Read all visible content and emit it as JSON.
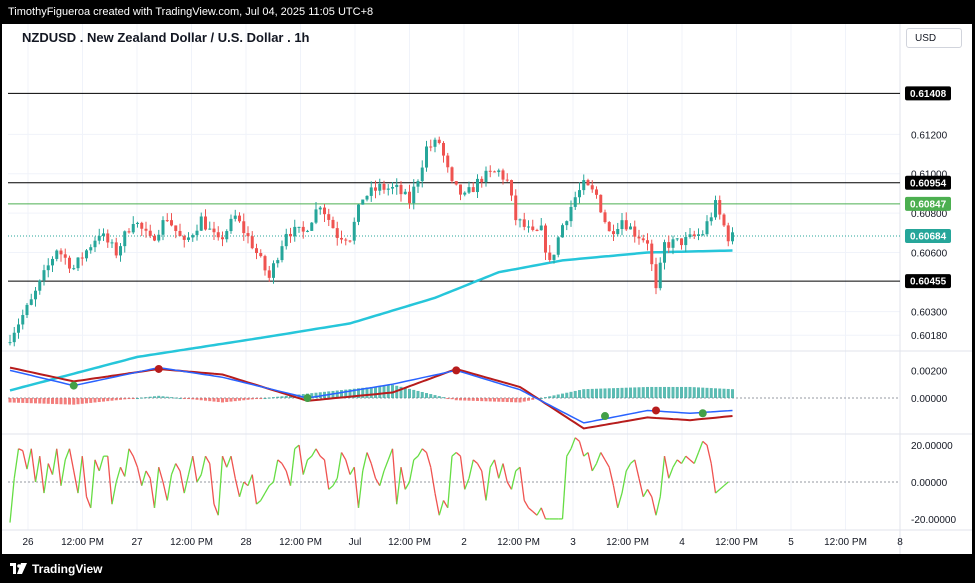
{
  "header": {
    "credit": "TimothyFigueroa created with TradingView.com, Jul 04, 2025 11:05 UTC+8"
  },
  "chart_header": {
    "title": "NZDUSD . New Zealand Dollar / U.S. Dollar . 1h",
    "currency": "USD"
  },
  "footer": {
    "brand": "TradingView"
  },
  "colors": {
    "up": "#26a69a",
    "down": "#ef5350",
    "ema": "#26c6da",
    "macd_line": "#2962ff",
    "signal_line": "#b71c1c",
    "macd_fast": "#43a047",
    "rsi_up": "#66dd44",
    "rsi_down": "#ef5350",
    "hline": "#000000",
    "green_line": "#4caf50"
  },
  "chart_data": [
    {
      "type": "candlestick",
      "pane": "price",
      "title": "NZDUSD . New Zealand Dollar / U.S. Dollar . 1h",
      "x_ticks": [
        "26",
        "12:00 PM",
        "27",
        "12:00 PM",
        "28",
        "12:00 PM",
        "Jul",
        "12:00 PM",
        "2",
        "12:00 PM",
        "3",
        "12:00 PM",
        "4",
        "12:00 PM",
        "5",
        "12:00 PM",
        "8"
      ],
      "y_ticks": [
        "0.61200",
        "0.61000",
        "0.60800",
        "0.60600",
        "0.60300",
        "0.60180"
      ],
      "y_tick_values": [
        0.612,
        0.61,
        0.608,
        0.606,
        0.603,
        0.6018
      ],
      "ylim": [
        0.601,
        0.6176
      ],
      "price_tags": [
        {
          "label": "0.61408",
          "value": 0.61408,
          "style": "black-line"
        },
        {
          "label": "0.60954",
          "value": 0.60954,
          "style": "black-line"
        },
        {
          "label": "0.60847",
          "value": 0.60847,
          "style": "green-line"
        },
        {
          "label": "0.60684",
          "value": 0.60684,
          "style": "current-price"
        },
        {
          "label": "0.60455",
          "value": 0.60455,
          "style": "black-line"
        }
      ],
      "price_path": [
        [
          0,
          0.6014
        ],
        [
          6,
          0.6035
        ],
        [
          12,
          0.6062
        ],
        [
          16,
          0.6052
        ],
        [
          22,
          0.607
        ],
        [
          26,
          0.606
        ],
        [
          30,
          0.6077
        ],
        [
          34,
          0.6066
        ],
        [
          38,
          0.6078
        ],
        [
          42,
          0.6064
        ],
        [
          46,
          0.6077
        ],
        [
          50,
          0.6065
        ],
        [
          54,
          0.6078
        ],
        [
          58,
          0.6064
        ],
        [
          62,
          0.6047
        ],
        [
          66,
          0.6071
        ],
        [
          70,
          0.607
        ],
        [
          74,
          0.6085
        ],
        [
          78,
          0.6069
        ],
        [
          81,
          0.6068
        ],
        [
          84,
          0.6088
        ],
        [
          88,
          0.6093
        ],
        [
          92,
          0.6092
        ],
        [
          95,
          0.6086
        ],
        [
          97,
          0.6098
        ],
        [
          99,
          0.6113
        ],
        [
          102,
          0.6116
        ],
        [
          105,
          0.6094
        ],
        [
          108,
          0.6088
        ],
        [
          112,
          0.6098
        ],
        [
          116,
          0.6101
        ],
        [
          118,
          0.6096
        ],
        [
          120,
          0.6077
        ],
        [
          124,
          0.6069
        ],
        [
          126,
          0.6071
        ],
        [
          128,
          0.6054
        ],
        [
          131,
          0.6074
        ],
        [
          134,
          0.6088
        ],
        [
          136,
          0.6094
        ],
        [
          139,
          0.6089
        ],
        [
          142,
          0.607
        ],
        [
          145,
          0.6077
        ],
        [
          148,
          0.607
        ],
        [
          151,
          0.6066
        ],
        [
          153,
          0.604
        ],
        [
          155,
          0.6064
        ],
        [
          160,
          0.6066
        ],
        [
          164,
          0.607
        ],
        [
          167,
          0.6084
        ],
        [
          170,
          0.6068
        ]
      ],
      "ema_path": [
        [
          0,
          0.599
        ],
        [
          30,
          0.6007
        ],
        [
          60,
          0.6017
        ],
        [
          80,
          0.6024
        ],
        [
          100,
          0.6037
        ],
        [
          115,
          0.605
        ],
        [
          130,
          0.6056
        ],
        [
          150,
          0.606
        ],
        [
          170,
          0.6061
        ]
      ],
      "bar_count": 171
    },
    {
      "type": "line",
      "pane": "macd",
      "y_ticks": [
        "0.00200",
        "0.00000"
      ],
      "y_tick_values": [
        0.002,
        0.0
      ],
      "ylim": [
        -0.0026,
        0.0034
      ],
      "macd_path": [
        [
          0,
          0.002
        ],
        [
          15,
          0.0009
        ],
        [
          35,
          0.0022
        ],
        [
          50,
          0.0015
        ],
        [
          70,
          0.0
        ],
        [
          90,
          0.001
        ],
        [
          105,
          0.002
        ],
        [
          120,
          0.0006
        ],
        [
          135,
          -0.0018
        ],
        [
          150,
          -0.0009
        ],
        [
          160,
          -0.0011
        ],
        [
          170,
          -0.0009
        ]
      ],
      "signal_path": [
        [
          0,
          0.0022
        ],
        [
          15,
          0.0012
        ],
        [
          35,
          0.0021
        ],
        [
          50,
          0.0017
        ],
        [
          70,
          -0.0002
        ],
        [
          90,
          0.0004
        ],
        [
          105,
          0.0021
        ],
        [
          120,
          0.0008
        ],
        [
          135,
          -0.0022
        ],
        [
          150,
          -0.0014
        ],
        [
          160,
          -0.0016
        ],
        [
          170,
          -0.0013
        ]
      ],
      "cross_markers": [
        {
          "bar": 15,
          "value": 0.0009,
          "dir": "up"
        },
        {
          "bar": 35,
          "value": 0.0021,
          "dir": "down"
        },
        {
          "bar": 70,
          "value": 0.0,
          "dir": "up"
        },
        {
          "bar": 105,
          "value": 0.002,
          "dir": "down"
        },
        {
          "bar": 140,
          "value": -0.0013,
          "dir": "up"
        },
        {
          "bar": 152,
          "value": -0.0009,
          "dir": "down"
        },
        {
          "bar": 163,
          "value": -0.0011,
          "dir": "up"
        }
      ]
    },
    {
      "type": "line",
      "pane": "oscillator",
      "y_ticks": [
        "20.00000",
        "0.00000",
        "-20.00000"
      ],
      "y_tick_values": [
        20,
        0,
        -20
      ],
      "ylim": [
        -26,
        26
      ],
      "values": [
        -22,
        2,
        18,
        17,
        7,
        18,
        0,
        14,
        -6,
        10,
        4,
        18,
        -2,
        12,
        18,
        6,
        -6,
        14,
        -8,
        -14,
        12,
        6,
        14,
        14,
        -12,
        0,
        8,
        3,
        18,
        14,
        8,
        -2,
        6,
        2,
        -14,
        8,
        0,
        -10,
        4,
        10,
        6,
        -6,
        4,
        14,
        0,
        4,
        14,
        10,
        -12,
        -18,
        14,
        8,
        14,
        2,
        -8,
        0,
        -2,
        4,
        -12,
        -10,
        -6,
        -2,
        0,
        12,
        10,
        6,
        -2,
        18,
        20,
        4,
        12,
        14,
        18,
        14,
        12,
        -4,
        -2,
        2,
        16,
        12,
        4,
        8,
        -14,
        6,
        16,
        10,
        2,
        -2,
        6,
        12,
        18,
        -12,
        8,
        -4,
        0,
        12,
        14,
        18,
        16,
        8,
        -6,
        -18,
        -10,
        -14,
        14,
        16,
        14,
        -4,
        2,
        12,
        10,
        6,
        -10,
        8,
        12,
        2,
        10,
        0,
        -4,
        6,
        8,
        -10,
        -14,
        -16,
        -18,
        -14,
        -20,
        -20,
        -20,
        -20,
        -20,
        14,
        18,
        24,
        22,
        14,
        16,
        6,
        10,
        16,
        12,
        8,
        -2,
        -14,
        -6,
        6,
        10,
        12,
        2,
        -8,
        -4,
        -8,
        -18,
        -8,
        14,
        2,
        8,
        12,
        10,
        14,
        12,
        10,
        16,
        22,
        20,
        10,
        -6,
        -4,
        -2,
        0
      ]
    }
  ]
}
